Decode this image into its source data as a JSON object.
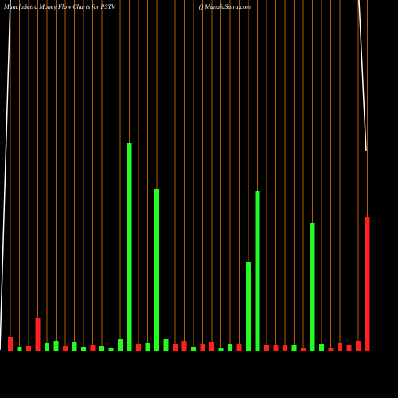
{
  "chart_data": {
    "type": "bar",
    "title": "MunafaSutra  Money Flow  Charts for PSTV",
    "subtitle": "() MunafaSutra.com",
    "categories": [
      null,
      null,
      null,
      null,
      null,
      null,
      null,
      null,
      null,
      null,
      null,
      null,
      null,
      null,
      null,
      null,
      null,
      null,
      null,
      null,
      null,
      null,
      null,
      null,
      null,
      null,
      null,
      null,
      null,
      null,
      null,
      null,
      null,
      null,
      null,
      null,
      null,
      null,
      null,
      null
    ],
    "values": [
      18,
      5,
      6,
      42,
      10,
      12,
      6,
      11,
      5,
      8,
      6,
      4,
      15,
      261,
      9,
      10,
      203,
      15,
      9,
      12,
      5,
      9,
      11,
      4,
      9,
      9,
      112,
      201,
      7,
      7,
      8,
      8,
      4,
      161,
      9,
      4,
      10,
      8,
      13,
      168
    ],
    "colors": [
      "#ff2020",
      "#20ff20",
      "#ff2020",
      "#ff2020",
      "#20ff20",
      "#20ff20",
      "#ff2020",
      "#20ff20",
      "#20ff20",
      "#ff2020",
      "#20ff20",
      "#20ff20",
      "#20ff20",
      "#20ff20",
      "#ff2020",
      "#20ff20",
      "#20ff20",
      "#20ff20",
      "#ff2020",
      "#ff2020",
      "#20ff20",
      "#ff2020",
      "#ff2020",
      "#20ff20",
      "#20ff20",
      "#ff2020",
      "#20ff20",
      "#20ff20",
      "#ff2020",
      "#ff2020",
      "#ff2020",
      "#20ff20",
      "#ff2020",
      "#20ff20",
      "#20ff20",
      "#ff2020",
      "#ff2020",
      "#ff2020",
      "#ff2020",
      "#ff2020"
    ],
    "grid_color": "#b35900",
    "ylim": [
      0,
      300
    ]
  }
}
